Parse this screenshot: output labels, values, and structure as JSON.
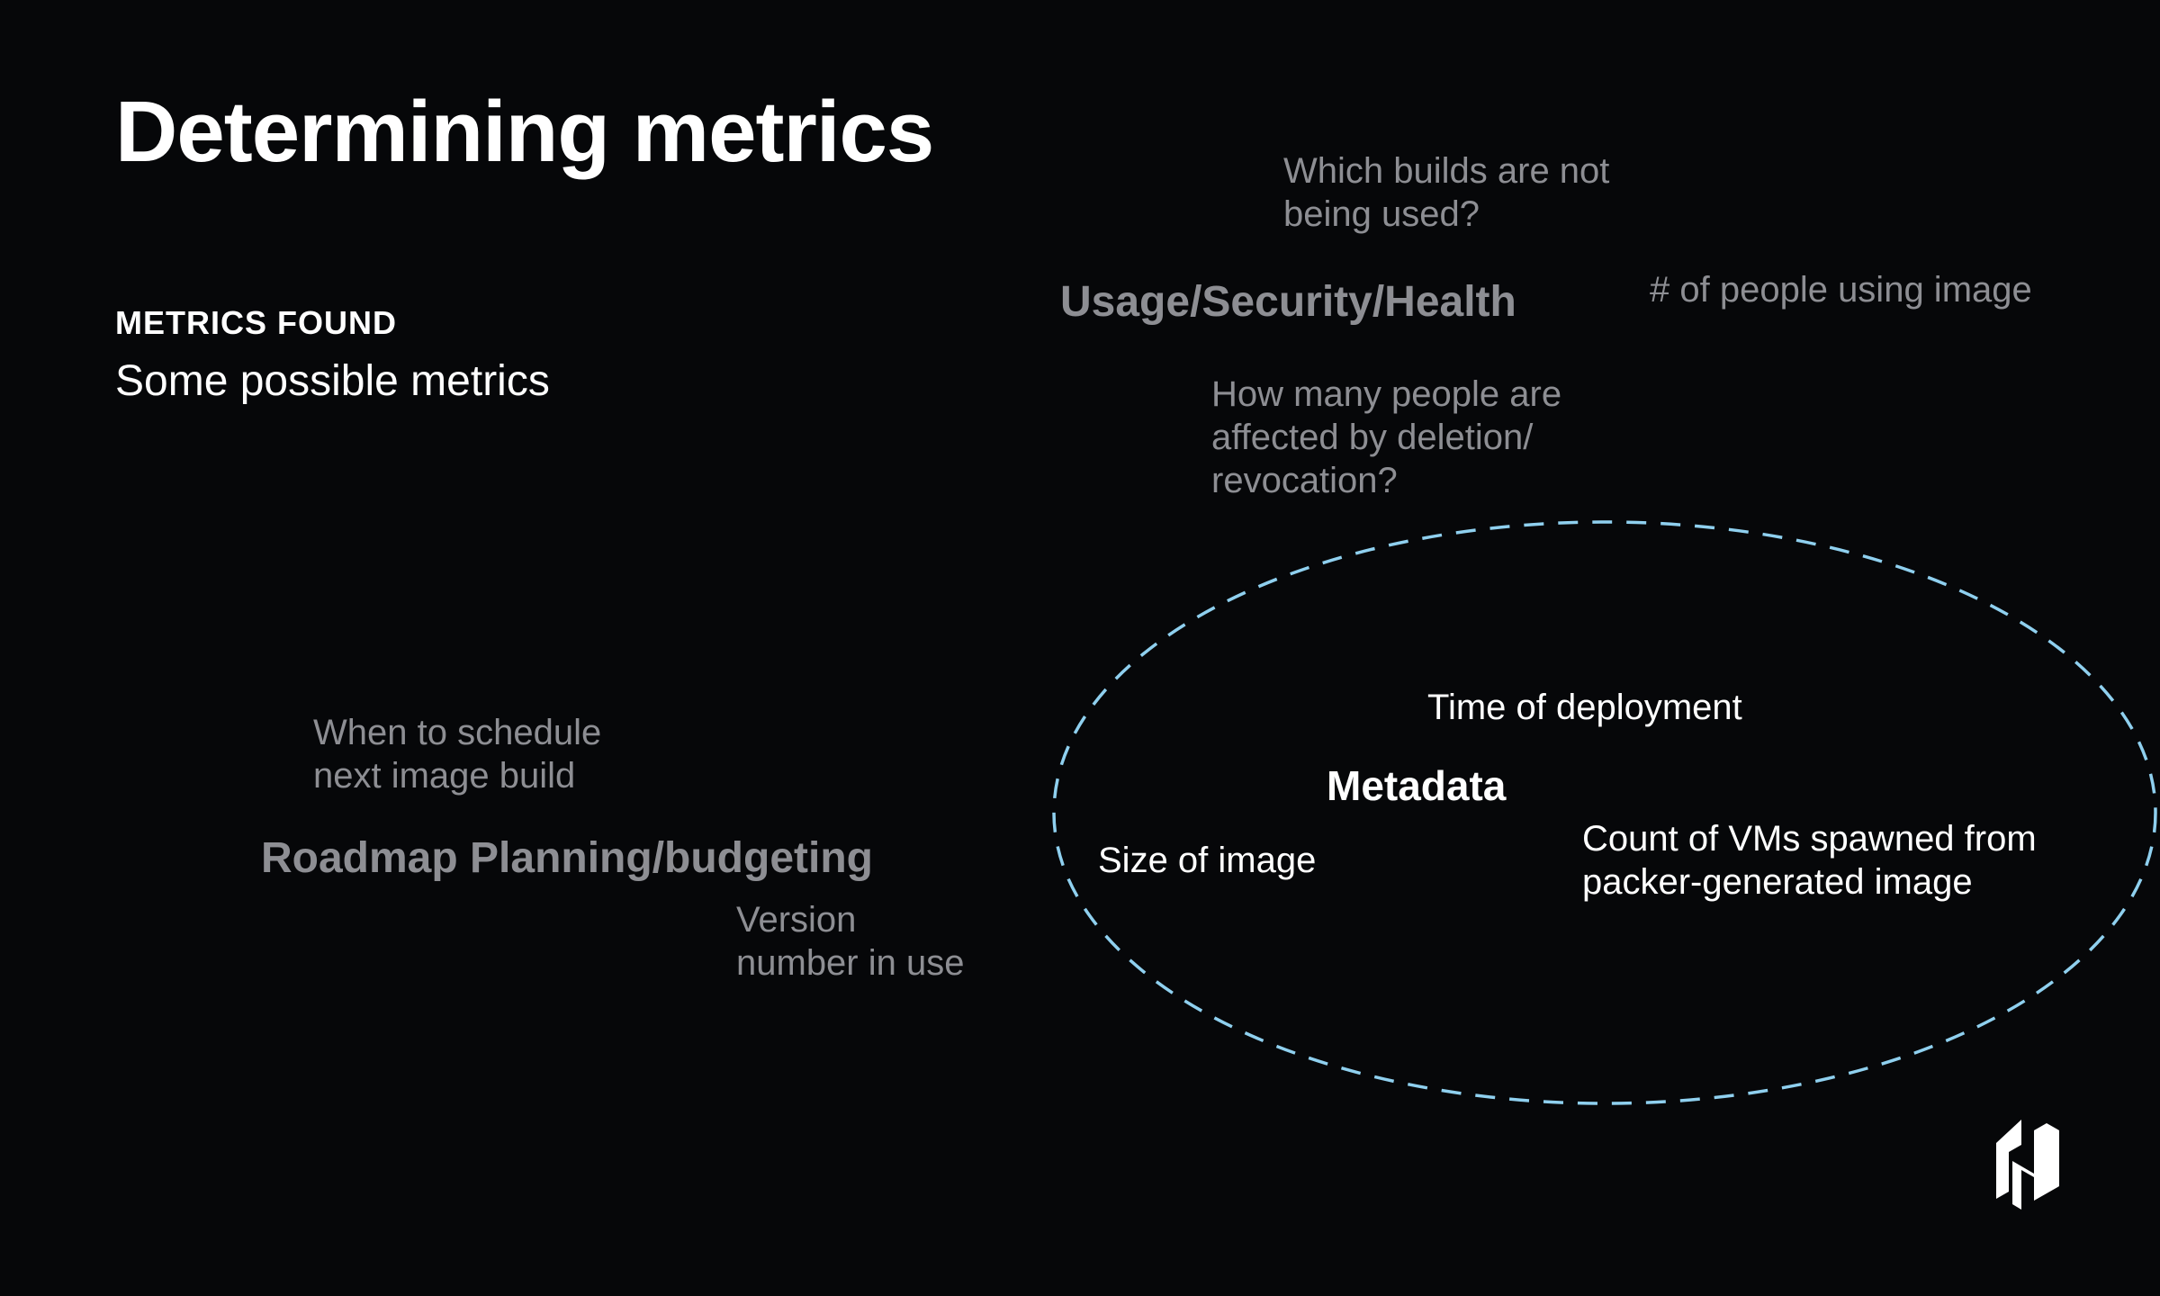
{
  "slide": {
    "title": "Determining metrics",
    "eyebrow": "METRICS FOUND",
    "subtitle": "Some possible metrics"
  },
  "usage_group": {
    "heading": "Usage/Security/Health",
    "notes": {
      "unused_builds": [
        "Which builds are not",
        "being used?"
      ],
      "people_count": "# of people using image",
      "affected_people": [
        "How many people are",
        "affected by deletion/",
        "revocation?"
      ]
    }
  },
  "roadmap_group": {
    "heading": "Roadmap Planning/budgeting",
    "notes": {
      "schedule": [
        "When to schedule",
        "next image build"
      ],
      "version": [
        "Version",
        "number in use"
      ]
    }
  },
  "metadata_group": {
    "heading": "Metadata",
    "notes": {
      "deployment_time": "Time of deployment",
      "image_size": "Size of image",
      "vm_count": [
        "Count of VMs spawned from",
        "packer-generated image"
      ]
    },
    "outline_color": "#8fd0ef"
  },
  "brand": {
    "logo_icon": "hashicorp-logo-icon"
  }
}
